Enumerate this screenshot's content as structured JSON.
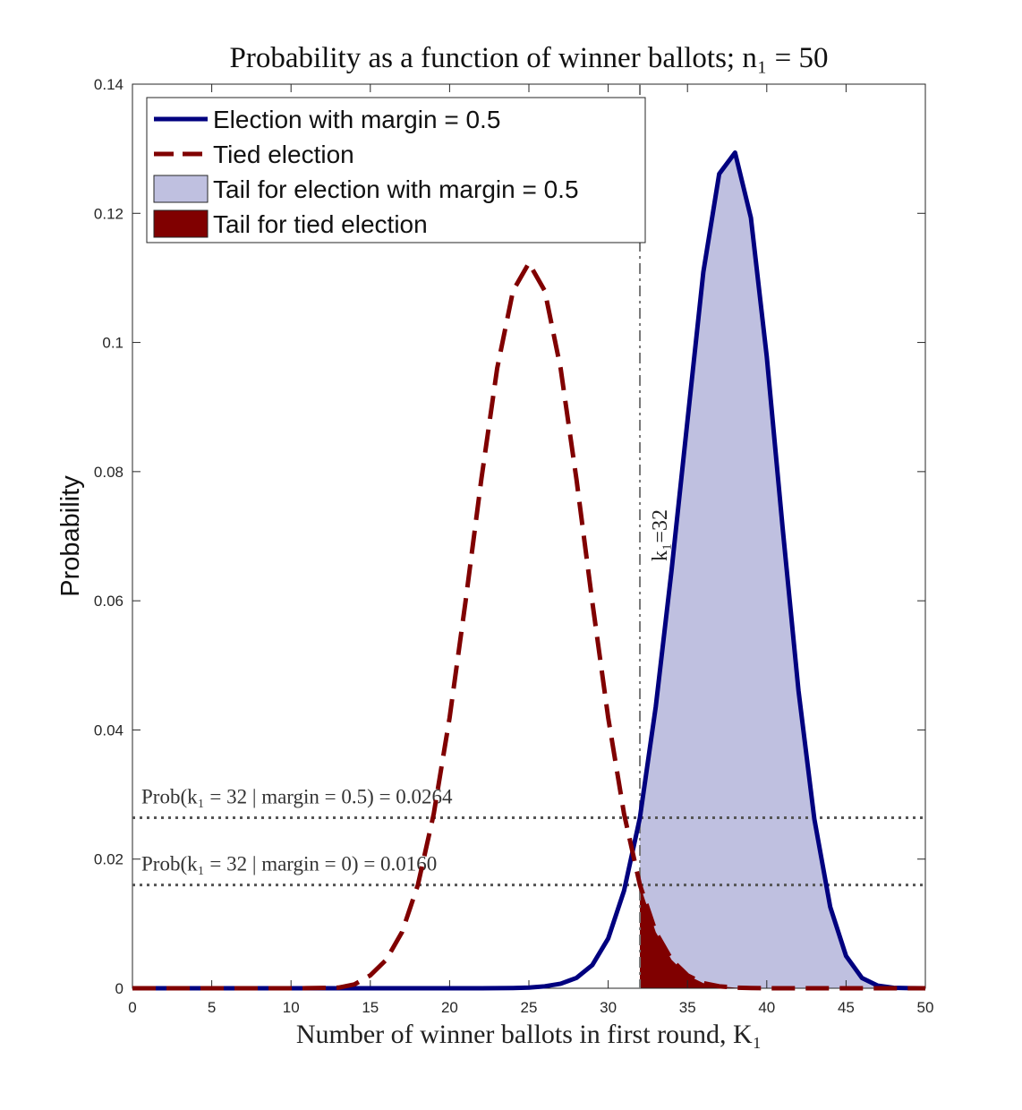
{
  "chart_data": {
    "type": "line",
    "title": "Probability as a function of winner ballots; n₁ = 50",
    "xlabel": "Number of winner ballots in first round, K₁",
    "ylabel": "Probability",
    "xlim": [
      0,
      50
    ],
    "ylim": [
      0,
      0.14
    ],
    "xticks": [
      0,
      5,
      10,
      15,
      20,
      25,
      30,
      35,
      40,
      45,
      50
    ],
    "yticks": [
      0,
      0.02,
      0.04,
      0.06,
      0.08,
      0.1,
      0.12,
      0.14
    ],
    "xtick_labels": [
      "0",
      "5",
      "10",
      "15",
      "20",
      "25",
      "30",
      "35",
      "40",
      "45",
      "50"
    ],
    "ytick_labels": [
      "0",
      "0.02",
      "0.04",
      "0.06",
      "0.08",
      "0.1",
      "0.12",
      "0.14"
    ],
    "grid": false,
    "legend_position": "top-left",
    "series": [
      {
        "name": "Election with margin = 0.5",
        "style": "solid",
        "color": "#00007f",
        "x": [
          0,
          1,
          2,
          3,
          4,
          5,
          6,
          7,
          8,
          9,
          10,
          11,
          12,
          13,
          14,
          15,
          16,
          17,
          18,
          19,
          20,
          21,
          22,
          23,
          24,
          25,
          26,
          27,
          28,
          29,
          30,
          31,
          32,
          33,
          34,
          35,
          36,
          37,
          38,
          39,
          40,
          41,
          42,
          43,
          44,
          45,
          46,
          47,
          48,
          49,
          50
        ],
        "values": [
          0,
          0,
          0,
          0,
          0,
          0,
          0,
          0,
          0,
          0,
          0,
          0,
          0,
          0,
          0,
          0,
          0,
          0,
          0,
          0,
          0,
          0,
          0,
          1e-05,
          3e-05,
          0.0001,
          0.0003,
          0.0007,
          0.0016,
          0.0036,
          0.0077,
          0.0151,
          0.0264,
          0.0436,
          0.0648,
          0.0879,
          0.1109,
          0.1261,
          0.1294,
          0.1193,
          0.0978,
          0.0713,
          0.0461,
          0.0262,
          0.0126,
          0.005,
          0.0016,
          0.0004,
          7e-05,
          1e-05,
          0
        ]
      },
      {
        "name": "Tied election",
        "style": "dashed",
        "color": "#800000",
        "x": [
          0,
          1,
          2,
          3,
          4,
          5,
          6,
          7,
          8,
          9,
          10,
          11,
          12,
          13,
          14,
          15,
          16,
          17,
          18,
          19,
          20,
          21,
          22,
          23,
          24,
          25,
          26,
          27,
          28,
          29,
          30,
          31,
          32,
          33,
          34,
          35,
          36,
          37,
          38,
          39,
          40,
          41,
          42,
          43,
          44,
          45,
          46,
          47,
          48,
          49,
          50
        ],
        "values": [
          0,
          0,
          0,
          0,
          0,
          0,
          0,
          0,
          0,
          0,
          0,
          1e-05,
          5e-05,
          0.0001,
          0.0006,
          0.002,
          0.0044,
          0.0087,
          0.016,
          0.027,
          0.0419,
          0.0598,
          0.0788,
          0.096,
          0.108,
          0.1123,
          0.108,
          0.096,
          0.0788,
          0.0598,
          0.0419,
          0.027,
          0.016,
          0.0087,
          0.0044,
          0.002,
          0.0008,
          0.0003,
          0.0001,
          3e-05,
          1e-05,
          0,
          0,
          0,
          0,
          0,
          0,
          0,
          0,
          0,
          0
        ]
      }
    ],
    "shaded_tails": [
      {
        "name": "Tail for election with margin = 0.5",
        "from_x": 32,
        "series_index": 0,
        "color": "#bfc0e0"
      },
      {
        "name": "Tail for tied election",
        "from_x": 32,
        "series_index": 1,
        "color": "#800000"
      }
    ],
    "vertical_line": {
      "x": 32,
      "label": "k₁=32",
      "style": "dash-dot",
      "color": "#777777"
    },
    "horizontal_lines": [
      {
        "y": 0.0264,
        "label": "Prob(k₁ = 32 | margin = 0.5) = 0.0264",
        "style": "dotted",
        "color": "#555555"
      },
      {
        "y": 0.016,
        "label": "Prob(k₁ = 32 | margin = 0) = 0.0160",
        "style": "dotted",
        "color": "#555555"
      }
    ]
  }
}
